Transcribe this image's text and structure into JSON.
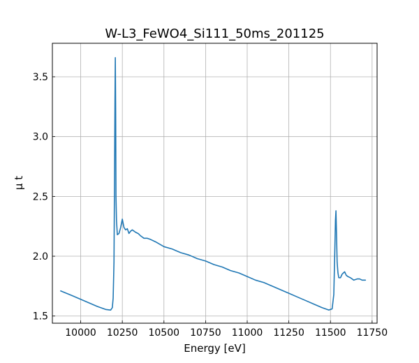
{
  "chart_data": {
    "type": "line",
    "title": "W-L3_FeWO4_Si111_50ms_201125",
    "xlabel": "Energy [eV]",
    "ylabel": "μ t",
    "xlim": [
      9830,
      11780
    ],
    "ylim": [
      1.44,
      3.78
    ],
    "grid": true,
    "x_ticks": [
      10000,
      10250,
      10500,
      10750,
      11000,
      11250,
      11500,
      11750
    ],
    "x_tick_labels": [
      "10000",
      "10250",
      "10500",
      "10750",
      "11000",
      "11250",
      "11500",
      "11750"
    ],
    "y_ticks": [
      1.5,
      2.0,
      2.5,
      3.0,
      3.5
    ],
    "y_tick_labels": [
      "1.5",
      "2.0",
      "2.5",
      "3.0",
      "3.5"
    ],
    "series": [
      {
        "color": "#1f77b4",
        "x": [
          9880,
          9950,
          10000,
          10050,
          10100,
          10150,
          10180,
          10190,
          10195,
          10200,
          10203,
          10206,
          10208,
          10210,
          10212,
          10215,
          10220,
          10230,
          10240,
          10250,
          10260,
          10270,
          10280,
          10290,
          10300,
          10310,
          10330,
          10345,
          10360,
          10380,
          10400,
          10420,
          10450,
          10500,
          10550,
          10600,
          10650,
          10700,
          10750,
          10800,
          10850,
          10900,
          10950,
          11000,
          11050,
          11100,
          11150,
          11200,
          11250,
          11300,
          11350,
          11400,
          11450,
          11490,
          11510,
          11520,
          11525,
          11530,
          11533,
          11536,
          11540,
          11545,
          11550,
          11560,
          11570,
          11585,
          11595,
          11605,
          11620,
          11640,
          11660,
          11675,
          11690,
          11710
        ],
        "y": [
          1.71,
          1.67,
          1.64,
          1.61,
          1.58,
          1.555,
          1.55,
          1.57,
          1.65,
          1.95,
          2.6,
          3.3,
          3.66,
          3.2,
          2.5,
          2.3,
          2.18,
          2.19,
          2.24,
          2.31,
          2.24,
          2.22,
          2.23,
          2.19,
          2.21,
          2.22,
          2.2,
          2.19,
          2.17,
          2.15,
          2.15,
          2.14,
          2.12,
          2.08,
          2.06,
          2.03,
          2.01,
          1.98,
          1.96,
          1.93,
          1.91,
          1.88,
          1.86,
          1.83,
          1.8,
          1.78,
          1.75,
          1.72,
          1.69,
          1.66,
          1.63,
          1.6,
          1.57,
          1.55,
          1.56,
          1.68,
          1.98,
          2.3,
          2.38,
          2.2,
          1.95,
          1.86,
          1.82,
          1.82,
          1.85,
          1.87,
          1.84,
          1.83,
          1.82,
          1.8,
          1.81,
          1.81,
          1.8,
          1.8
        ]
      }
    ]
  }
}
